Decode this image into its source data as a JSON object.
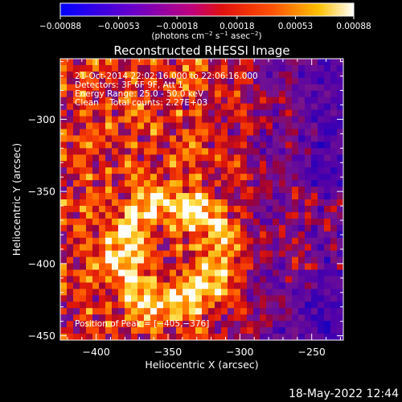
{
  "chart_data": {
    "type": "heatmap",
    "title": "Reconstructed RHESSI Image",
    "xlabel": "Heliocentric X (arcsec)",
    "ylabel": "Heliocentric Y (arcsec)",
    "xlim": [
      -425,
      -228
    ],
    "ylim": [
      -453,
      -258
    ],
    "x_ticks": [
      -400,
      -350,
      -300,
      -250
    ],
    "x_tick_labels": [
      "−400",
      "−350",
      "−300",
      "−250"
    ],
    "y_ticks": [
      -300,
      -350,
      -400,
      -450
    ],
    "y_tick_labels": [
      "−300",
      "−350",
      "−400",
      "−450"
    ],
    "colorbar": {
      "range": [
        -0.00088,
        0.00088
      ],
      "ticks": [
        -0.00088,
        -0.00053,
        -0.00018,
        0.00018,
        0.00053,
        0.00088
      ],
      "tick_labels": [
        "−0.00088",
        "−0.00053",
        "−0.00018",
        "0.00018",
        "0.00053",
        "0.00088"
      ],
      "unit_label": "(photons cm",
      "unit_exp1": "−2",
      "unit_mid1": " s",
      "unit_exp2": "−1",
      "unit_mid2": " asec",
      "unit_exp3": "−2",
      "unit_end": ")",
      "colormap": "blue-purple-red-orange-yellow-white"
    },
    "annotations": [
      "21-Oct-2014 22:02:16.000 to 22:06:16.000",
      "Detectors: 3F 6F 9F, Att 1",
      "Energy Range: 25.0 - 50.0 keV",
      "Clean    Total counts: 2.27E+03"
    ],
    "peak_label": "Position of Peak = [−405,−376]",
    "peak_position": [
      -405,
      -376
    ],
    "grid": false,
    "seed": 20141021
  },
  "timestamp": "18-May-2022 12:44"
}
